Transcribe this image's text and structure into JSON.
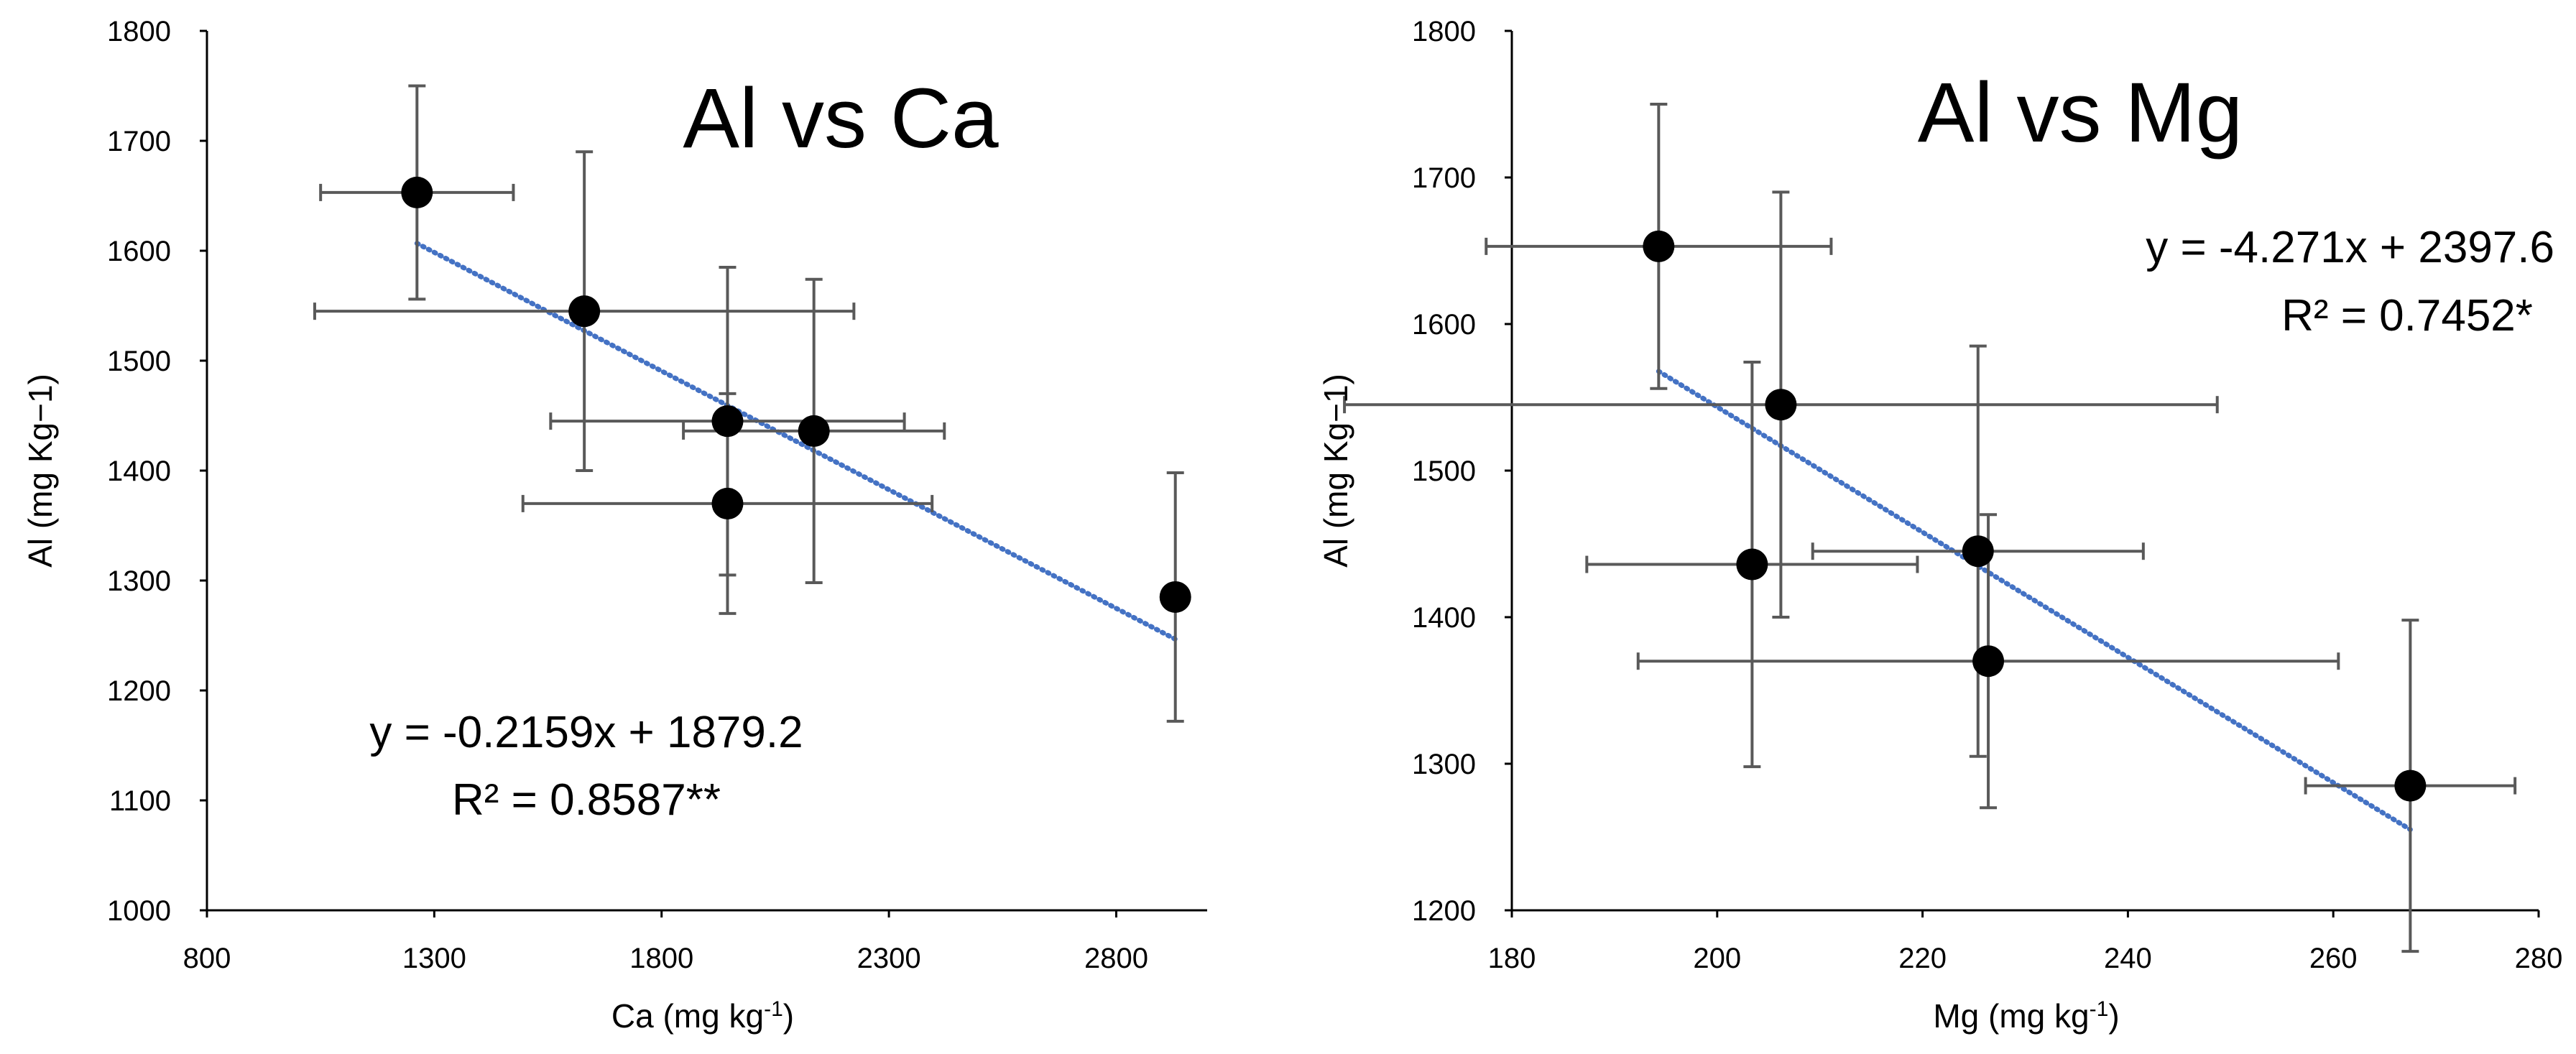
{
  "chart_data": [
    {
      "type": "scatter",
      "title": "Al vs Ca",
      "xlabel": "Ca (mg kg-1)",
      "ylabel": "Al (mg Kg−1)",
      "xlim": [
        800,
        3000
      ],
      "ylim": [
        1000,
        1800
      ],
      "xticks": [
        800,
        1300,
        1800,
        2300,
        2800
      ],
      "yticks": [
        1000,
        1100,
        1200,
        1300,
        1400,
        1500,
        1600,
        1700,
        1800
      ],
      "xtick_labels": [
        "800",
        "1300",
        "1800",
        "2300",
        "2800"
      ],
      "ytick_labels": [
        "1000",
        "1100",
        "1200",
        "1300",
        "1400",
        "1500",
        "1600",
        "1700",
        "1800"
      ],
      "grid": false,
      "points": [
        {
          "x": 1262,
          "y": 1653,
          "x_err": 212,
          "y_err": 97
        },
        {
          "x": 1630,
          "y": 1545,
          "x_err": 593,
          "y_err": 145
        },
        {
          "x": 1945,
          "y": 1445,
          "x_err": 389,
          "y_err": 140
        },
        {
          "x": 2135,
          "y": 1436,
          "x_err": 287,
          "y_err": 138
        },
        {
          "x": 1945,
          "y": 1370,
          "x_err": 450,
          "y_err": 100
        },
        {
          "x": 2930,
          "y": 1285,
          "x_err": 0,
          "y_err": 113
        }
      ],
      "trendline": {
        "slope": -0.2159,
        "intercept": 1879.2,
        "x_start": 1262,
        "x_end": 2930,
        "style": "dotted",
        "color": "#4472C4"
      },
      "equation": "y = -0.2159x + 1879.2",
      "r_squared": "R² = 0.8587**"
    },
    {
      "type": "scatter",
      "title": "Al vs Mg",
      "xlabel": "Mg (mg kg-1)",
      "ylabel": "Al (mg Kg−1)",
      "xlim": [
        180,
        280
      ],
      "ylim": [
        1200,
        1800
      ],
      "xticks": [
        180,
        200,
        220,
        240,
        260,
        280
      ],
      "yticks": [
        1200,
        1300,
        1400,
        1500,
        1600,
        1700,
        1800
      ],
      "xtick_labels": [
        "180",
        "200",
        "220",
        "240",
        "260",
        "280"
      ],
      "ytick_labels": [
        "1200",
        "1300",
        "1400",
        "1500",
        "1600",
        "1700",
        "1800"
      ],
      "grid": false,
      "points": [
        {
          "x": 194.3,
          "y": 1653,
          "x_err": 16.8,
          "y_err": 97
        },
        {
          "x": 206.2,
          "y": 1545,
          "x_err": 42.5,
          "y_err": 145
        },
        {
          "x": 203.4,
          "y": 1436,
          "x_err": 16.1,
          "y_err": 138
        },
        {
          "x": 225.4,
          "y": 1445,
          "x_err": 16.1,
          "y_err": 140
        },
        {
          "x": 226.4,
          "y": 1370,
          "x_err": 34.1,
          "y_err": 100
        },
        {
          "x": 267.5,
          "y": 1285,
          "x_err": 10.2,
          "y_err": 113
        }
      ],
      "trendline": {
        "slope": -4.271,
        "intercept": 2397.6,
        "x_start": 194.3,
        "x_end": 267.5,
        "style": "dotted",
        "color": "#4472C4"
      },
      "equation": "y = -4.271x + 2397.6",
      "r_squared": "R² = 0.7452*"
    }
  ]
}
